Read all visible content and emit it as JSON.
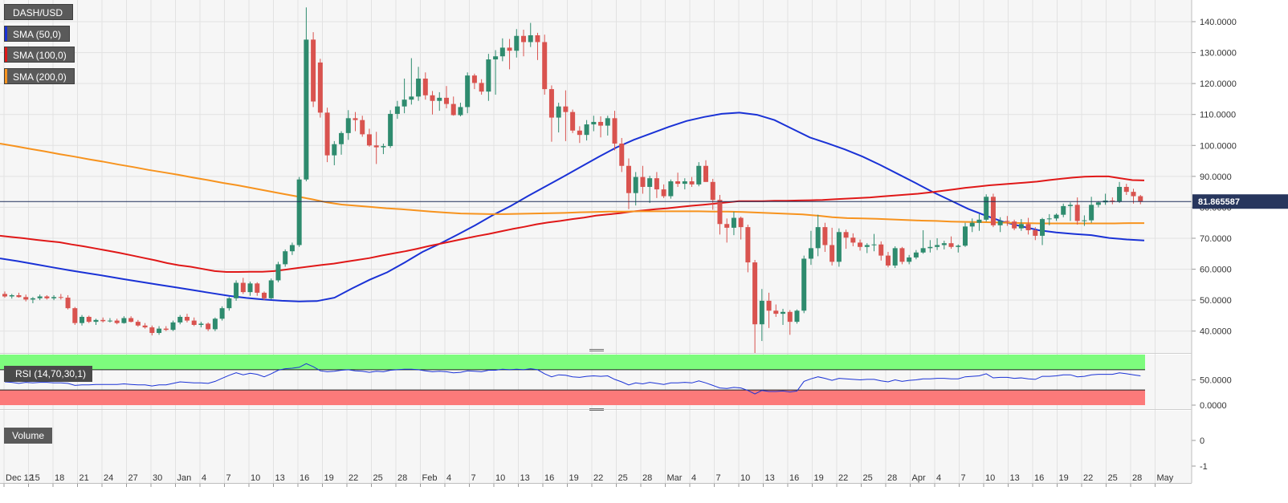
{
  "legend": [
    {
      "label": "DASH/USD",
      "color": "#5a5a5a"
    },
    {
      "label": "SMA (50,0)",
      "color": "#1a32d6"
    },
    {
      "label": "SMA (100,0)",
      "color": "#e01818"
    },
    {
      "label": "SMA (200,0)",
      "color": "#f7931e"
    }
  ],
  "rsi_label": "RSI (14,70,30,1)",
  "volume_label": "Volume",
  "last_price_label": "81.865587",
  "colors": {
    "up": "#2e8b6e",
    "down": "#d9534f",
    "sma50": "#1a32d6",
    "sma100": "#e01818",
    "sma200": "#f7931e",
    "rsi_line": "#1a32d6",
    "rsi_upper": "#7dfc7d",
    "rsi_lower": "#fc7a7a",
    "price_line": "#1e2d5a"
  },
  "chart_data": {
    "type": "candlestick",
    "symbol": "DASH/USD",
    "price_axis": {
      "ylim": [
        35,
        147
      ],
      "ticks": [
        "40.0000",
        "50.0000",
        "60.0000",
        "70.0000",
        "80.0000",
        "90.0000",
        "100.0000",
        "110.0000",
        "120.0000",
        "130.0000",
        "140.0000"
      ]
    },
    "x_ticks": [
      "Dec 12",
      "15",
      "18",
      "21",
      "24",
      "27",
      "30",
      "Jan",
      "4",
      "7",
      "10",
      "13",
      "16",
      "19",
      "22",
      "25",
      "28",
      "Feb",
      "4",
      "7",
      "10",
      "13",
      "16",
      "19",
      "22",
      "25",
      "28",
      "Mar",
      "4",
      "7",
      "10",
      "13",
      "16",
      "19",
      "22",
      "25",
      "28",
      "Apr",
      "4",
      "7",
      "10",
      "13",
      "16",
      "19",
      "22",
      "25",
      "28",
      "May"
    ],
    "candles": [
      [
        52.0,
        52.8,
        50.8,
        51.2
      ],
      [
        51.2,
        52.0,
        50.5,
        51.6
      ],
      [
        51.6,
        52.4,
        50.8,
        51.0
      ],
      [
        51.0,
        51.8,
        49.6,
        50.2
      ],
      [
        50.2,
        51.0,
        49.0,
        50.6
      ],
      [
        50.6,
        51.8,
        50.0,
        51.2
      ],
      [
        51.2,
        51.6,
        50.2,
        50.6
      ],
      [
        50.6,
        51.6,
        50.0,
        51.0
      ],
      [
        51.0,
        52.0,
        50.2,
        50.8
      ],
      [
        50.8,
        51.6,
        47.0,
        47.4
      ],
      [
        47.4,
        47.8,
        42.0,
        42.6
      ],
      [
        42.6,
        45.2,
        41.8,
        44.6
      ],
      [
        44.6,
        45.0,
        42.6,
        43.0
      ],
      [
        43.0,
        44.0,
        42.0,
        43.6
      ],
      [
        43.6,
        44.4,
        42.8,
        43.2
      ],
      [
        43.2,
        44.2,
        42.8,
        43.4
      ],
      [
        43.4,
        44.0,
        42.2,
        42.6
      ],
      [
        42.6,
        44.8,
        42.4,
        44.2
      ],
      [
        44.2,
        44.8,
        42.8,
        43.0
      ],
      [
        43.0,
        43.6,
        41.4,
        41.8
      ],
      [
        41.8,
        42.6,
        40.8,
        41.2
      ],
      [
        41.2,
        41.8,
        38.6,
        39.4
      ],
      [
        39.4,
        41.6,
        38.8,
        40.8
      ],
      [
        40.8,
        41.6,
        40.0,
        40.4
      ],
      [
        40.4,
        43.4,
        40.0,
        42.8
      ],
      [
        42.8,
        45.2,
        42.2,
        44.6
      ],
      [
        44.6,
        45.6,
        42.8,
        43.4
      ],
      [
        43.4,
        44.4,
        41.6,
        42.0
      ],
      [
        42.0,
        43.0,
        41.2,
        42.4
      ],
      [
        42.4,
        42.8,
        40.0,
        40.6
      ],
      [
        40.6,
        44.4,
        40.0,
        44.0
      ],
      [
        44.0,
        48.0,
        43.4,
        47.4
      ],
      [
        47.4,
        51.0,
        46.6,
        50.6
      ],
      [
        50.6,
        56.4,
        49.8,
        55.6
      ],
      [
        55.6,
        57.2,
        52.0,
        52.6
      ],
      [
        52.6,
        56.0,
        51.4,
        55.4
      ],
      [
        55.4,
        55.8,
        51.4,
        52.4
      ],
      [
        52.4,
        52.8,
        50.0,
        50.6
      ],
      [
        50.6,
        57.0,
        50.2,
        56.4
      ],
      [
        56.4,
        62.4,
        55.8,
        61.6
      ],
      [
        61.6,
        66.4,
        60.8,
        65.8
      ],
      [
        65.8,
        68.6,
        64.6,
        67.8
      ],
      [
        67.8,
        89.8,
        67.2,
        89.0
      ],
      [
        89.0,
        144.6,
        88.4,
        134.2
      ],
      [
        134.2,
        136.6,
        112.4,
        114.2
      ],
      [
        126.8,
        128.0,
        109.0,
        110.6
      ],
      [
        110.6,
        112.2,
        94.6,
        96.8
      ],
      [
        96.8,
        101.4,
        93.6,
        100.4
      ],
      [
        100.4,
        104.6,
        97.0,
        104.0
      ],
      [
        104.0,
        111.4,
        101.8,
        108.8
      ],
      [
        108.8,
        110.8,
        104.6,
        108.2
      ],
      [
        108.2,
        109.6,
        102.8,
        103.6
      ],
      [
        103.6,
        105.4,
        99.6,
        100.0
      ],
      [
        100.0,
        104.4,
        94.0,
        99.4
      ],
      [
        99.4,
        100.6,
        97.2,
        99.8
      ],
      [
        99.8,
        111.4,
        99.2,
        110.2
      ],
      [
        110.2,
        114.4,
        108.6,
        112.6
      ],
      [
        112.6,
        121.6,
        110.4,
        114.8
      ],
      [
        114.8,
        128.2,
        113.2,
        115.8
      ],
      [
        115.8,
        125.4,
        114.4,
        121.6
      ],
      [
        121.6,
        123.6,
        114.8,
        116.2
      ],
      [
        116.2,
        117.6,
        110.0,
        114.4
      ],
      [
        114.4,
        117.2,
        111.2,
        115.4
      ],
      [
        115.4,
        119.2,
        112.0,
        113.4
      ],
      [
        113.4,
        115.8,
        109.6,
        109.8
      ],
      [
        109.8,
        113.8,
        109.4,
        112.4
      ],
      [
        112.4,
        123.6,
        110.4,
        122.6
      ],
      [
        122.6,
        123.2,
        118.2,
        120.2
      ],
      [
        120.2,
        121.4,
        116.4,
        117.4
      ],
      [
        117.4,
        129.6,
        114.4,
        127.8
      ],
      [
        127.8,
        130.8,
        116.4,
        128.8
      ],
      [
        128.8,
        134.6,
        127.2,
        131.6
      ],
      [
        131.6,
        134.4,
        124.6,
        130.6
      ],
      [
        130.6,
        137.6,
        128.4,
        135.4
      ],
      [
        135.4,
        137.4,
        128.8,
        133.4
      ],
      [
        133.4,
        139.6,
        131.8,
        135.6
      ],
      [
        135.6,
        136.4,
        127.6,
        133.4
      ],
      [
        133.4,
        135.8,
        116.4,
        118.2
      ],
      [
        118.2,
        119.4,
        101.2,
        109.0
      ],
      [
        109.0,
        113.8,
        104.2,
        112.6
      ],
      [
        112.6,
        117.8,
        101.4,
        110.8
      ],
      [
        110.8,
        111.6,
        104.0,
        104.8
      ],
      [
        104.8,
        106.2,
        100.8,
        103.4
      ],
      [
        103.4,
        108.2,
        101.6,
        106.8
      ],
      [
        106.8,
        109.6,
        104.6,
        107.6
      ],
      [
        107.6,
        109.4,
        102.6,
        106.4
      ],
      [
        106.4,
        109.6,
        103.2,
        108.8
      ],
      [
        108.8,
        111.2,
        98.4,
        100.6
      ],
      [
        100.6,
        102.4,
        91.4,
        93.4
      ],
      [
        93.4,
        95.8,
        79.4,
        84.6
      ],
      [
        84.6,
        91.4,
        80.6,
        89.8
      ],
      [
        89.8,
        93.4,
        84.4,
        86.6
      ],
      [
        86.6,
        90.2,
        81.4,
        89.4
      ],
      [
        89.4,
        91.4,
        83.0,
        85.8
      ],
      [
        85.8,
        87.4,
        83.0,
        83.6
      ],
      [
        83.6,
        89.0,
        82.8,
        88.4
      ],
      [
        88.4,
        91.2,
        86.6,
        87.6
      ],
      [
        87.6,
        89.4,
        85.8,
        88.4
      ],
      [
        88.4,
        89.8,
        86.6,
        87.4
      ],
      [
        87.4,
        94.6,
        86.8,
        93.4
      ],
      [
        93.4,
        95.2,
        88.2,
        88.2
      ],
      [
        88.2,
        89.2,
        79.2,
        82.4
      ],
      [
        82.4,
        84.0,
        71.2,
        74.6
      ],
      [
        74.6,
        76.4,
        68.6,
        73.4
      ],
      [
        73.4,
        78.6,
        71.0,
        76.6
      ],
      [
        76.6,
        77.0,
        69.6,
        73.6
      ],
      [
        73.6,
        74.4,
        59.0,
        62.2
      ],
      [
        62.2,
        63.0,
        32.8,
        42.2
      ],
      [
        42.2,
        53.6,
        36.8,
        49.8
      ],
      [
        49.8,
        52.4,
        41.0,
        46.6
      ],
      [
        46.6,
        48.6,
        44.6,
        45.6
      ],
      [
        45.6,
        47.2,
        42.0,
        46.2
      ],
      [
        46.2,
        46.8,
        38.8,
        43.0
      ],
      [
        43.0,
        47.0,
        42.4,
        46.6
      ],
      [
        46.6,
        64.4,
        45.8,
        63.4
      ],
      [
        63.4,
        72.4,
        61.4,
        66.8
      ],
      [
        66.8,
        77.6,
        64.2,
        73.6
      ],
      [
        73.6,
        75.0,
        65.6,
        67.8
      ],
      [
        67.8,
        73.4,
        61.2,
        62.4
      ],
      [
        62.4,
        73.2,
        60.8,
        72.0
      ],
      [
        72.0,
        72.8,
        66.6,
        70.2
      ],
      [
        70.2,
        71.6,
        67.4,
        68.6
      ],
      [
        68.6,
        69.6,
        66.0,
        67.2
      ],
      [
        67.2,
        68.4,
        65.2,
        67.8
      ],
      [
        67.8,
        71.4,
        65.8,
        68.0
      ],
      [
        68.0,
        69.0,
        62.8,
        64.4
      ],
      [
        64.4,
        65.6,
        60.6,
        61.2
      ],
      [
        61.2,
        67.4,
        60.4,
        66.8
      ],
      [
        66.8,
        67.2,
        61.6,
        62.4
      ],
      [
        62.4,
        64.6,
        61.6,
        63.8
      ],
      [
        63.8,
        66.2,
        63.2,
        65.4
      ],
      [
        65.4,
        72.6,
        65.0,
        66.8
      ],
      [
        66.8,
        69.4,
        65.4,
        67.2
      ],
      [
        67.2,
        70.0,
        66.2,
        67.8
      ],
      [
        67.8,
        69.2,
        66.4,
        68.4
      ],
      [
        68.4,
        70.6,
        66.6,
        67.2
      ],
      [
        67.2,
        68.0,
        65.4,
        67.6
      ],
      [
        67.6,
        75.0,
        67.2,
        73.8
      ],
      [
        73.8,
        76.4,
        72.0,
        75.0
      ],
      [
        75.0,
        77.8,
        72.4,
        76.0
      ],
      [
        76.0,
        84.2,
        75.4,
        83.4
      ],
      [
        83.4,
        84.4,
        73.6,
        74.2
      ],
      [
        74.2,
        76.8,
        72.0,
        75.6
      ],
      [
        75.6,
        77.2,
        74.0,
        75.4
      ],
      [
        75.4,
        76.0,
        72.6,
        73.2
      ],
      [
        73.2,
        76.2,
        72.4,
        74.6
      ],
      [
        74.6,
        76.6,
        71.2,
        72.6
      ],
      [
        72.6,
        73.6,
        69.4,
        70.8
      ],
      [
        70.8,
        76.6,
        67.8,
        76.2
      ],
      [
        76.2,
        77.8,
        74.2,
        76.4
      ],
      [
        76.4,
        78.0,
        75.6,
        77.6
      ],
      [
        77.6,
        81.2,
        76.8,
        80.4
      ],
      [
        80.4,
        81.6,
        75.6,
        80.8
      ],
      [
        80.8,
        83.2,
        74.4,
        75.6
      ],
      [
        75.6,
        77.4,
        74.0,
        75.8
      ],
      [
        75.8,
        83.4,
        75.0,
        80.8
      ],
      [
        80.8,
        82.0,
        80.0,
        81.6
      ],
      [
        81.6,
        84.4,
        80.8,
        82.2
      ],
      [
        82.2,
        83.2,
        81.0,
        81.8
      ],
      [
        81.8,
        88.2,
        81.4,
        86.6
      ],
      [
        86.6,
        87.6,
        84.0,
        85.0
      ],
      [
        85.0,
        86.0,
        81.2,
        83.6
      ],
      [
        83.6,
        84.0,
        81.0,
        81.9
      ]
    ],
    "series": [
      {
        "name": "SMA (50,0)",
        "values": [
          63.5,
          62.6,
          61.6,
          60.6,
          59.6,
          58.7,
          57.8,
          56.8,
          55.9,
          55.0,
          54.1,
          53.2,
          52.3,
          51.4,
          50.7,
          50.2,
          49.8,
          49.6,
          49.7,
          50.8,
          53.8,
          56.6,
          59.0,
          62.2,
          65.6,
          68.3,
          71.2,
          74.2,
          77.5,
          80.4,
          83.7,
          86.8,
          89.9,
          93.1,
          96.3,
          99.3,
          101.8,
          103.9,
          106.0,
          107.9,
          109.2,
          110.2,
          110.6,
          109.9,
          108.2,
          105.4,
          102.6,
          100.7,
          98.7,
          96.4,
          93.7,
          90.8,
          87.9,
          84.9,
          82.2,
          79.5,
          77.3,
          75.3,
          73.9,
          72.6,
          71.9,
          71.4,
          71.0,
          70.1,
          69.6,
          69.3
        ]
      },
      {
        "name": "SMA (100,0)",
        "values": [
          70.8,
          70.4,
          70.0,
          69.5,
          69.1,
          68.7,
          68.0,
          67.4,
          66.7,
          66.0,
          65.3,
          64.5,
          63.7,
          62.9,
          62.0,
          61.3,
          60.8,
          60.1,
          59.4,
          59.1,
          59.1,
          59.2,
          59.2,
          59.4,
          59.9,
          60.4,
          60.9,
          61.4,
          61.8,
          62.4,
          63.0,
          63.6,
          64.4,
          65.1,
          65.8,
          66.6,
          67.5,
          68.3,
          69.1,
          69.9,
          70.7,
          71.4,
          72.2,
          73.0,
          73.7,
          74.5,
          75.1,
          75.6,
          76.2,
          76.7,
          77.3,
          77.7,
          78.1,
          78.6,
          79.0,
          79.4,
          79.7,
          80.1,
          80.5,
          80.8,
          81.2,
          81.6,
          82.0,
          82.0,
          82.0,
          82.1,
          82.1,
          82.2,
          82.3,
          82.4,
          82.6,
          82.8,
          83.0,
          83.2,
          83.5,
          83.8,
          84.1,
          84.4,
          84.8,
          85.3,
          85.8,
          86.3,
          86.7,
          87.1,
          87.4,
          87.7,
          88.0,
          88.3,
          88.8,
          89.2,
          89.6,
          89.9,
          90.0,
          90.0,
          89.4,
          88.8,
          88.7
        ]
      },
      {
        "name": "SMA (200,0)",
        "values": [
          100.6,
          99.8,
          98.9,
          98.1,
          97.2,
          96.4,
          95.5,
          94.7,
          93.8,
          93.0,
          92.1,
          91.3,
          90.5,
          89.6,
          88.8,
          87.9,
          87.1,
          86.2,
          85.3,
          84.4,
          83.5,
          82.6,
          81.6,
          80.9,
          80.5,
          80.1,
          79.7,
          79.4,
          79.0,
          78.6,
          78.3,
          78.0,
          77.9,
          77.8,
          77.8,
          77.9,
          78.0,
          78.1,
          78.2,
          78.4,
          78.5,
          78.6,
          78.6,
          78.7,
          78.7,
          78.7,
          78.7,
          78.7,
          78.6,
          78.6,
          78.5,
          78.3,
          78.1,
          77.9,
          77.7,
          77.3,
          76.8,
          76.5,
          76.4,
          76.3,
          76.1,
          75.9,
          75.7,
          75.6,
          75.4,
          75.3,
          75.2,
          75.1,
          75.0,
          74.9,
          74.8,
          74.8,
          74.8,
          74.8,
          74.8,
          74.8,
          74.9,
          74.9
        ]
      }
    ],
    "last_price": 81.865587,
    "rsi": {
      "label": "RSI (14,70,30,1)",
      "ylim": [
        0,
        100
      ],
      "ticks": [
        "0.0000",
        "50.0000"
      ],
      "values": [
        46,
        45,
        43,
        45,
        44,
        45,
        45,
        44,
        44,
        43,
        39,
        40,
        40,
        41,
        41,
        41,
        41,
        42,
        41,
        40,
        40,
        38,
        40,
        40,
        43,
        46,
        45,
        44,
        44,
        43,
        47,
        53,
        59,
        64,
        60,
        63,
        61,
        56,
        62,
        69,
        72,
        73,
        75,
        82,
        76,
        68,
        66,
        67,
        69,
        70,
        68,
        67,
        65,
        67,
        66,
        69,
        70,
        71,
        71,
        70,
        68,
        66,
        67,
        66,
        64,
        65,
        68,
        67,
        66,
        69,
        69,
        71,
        70,
        71,
        70,
        72,
        70,
        62,
        56,
        60,
        59,
        56,
        55,
        57,
        58,
        57,
        58,
        51,
        46,
        40,
        44,
        42,
        45,
        43,
        41,
        44,
        44,
        45,
        44,
        48,
        44,
        39,
        34,
        33,
        35,
        34,
        29,
        22,
        29,
        27,
        27,
        28,
        26,
        28,
        47,
        52,
        56,
        53,
        49,
        53,
        52,
        51,
        50,
        51,
        51,
        48,
        46,
        50,
        47,
        49,
        50,
        52,
        52,
        53,
        53,
        52,
        52,
        56,
        57,
        58,
        62,
        54,
        55,
        55,
        53,
        54,
        52,
        51,
        57,
        57,
        58,
        60,
        60,
        56,
        57,
        60,
        61,
        61,
        61,
        64,
        62,
        60,
        58
      ],
      "upper_band": 70,
      "lower_band": 30
    },
    "volume": {
      "label": "Volume",
      "ticks": [
        "0",
        "-1"
      ]
    }
  }
}
